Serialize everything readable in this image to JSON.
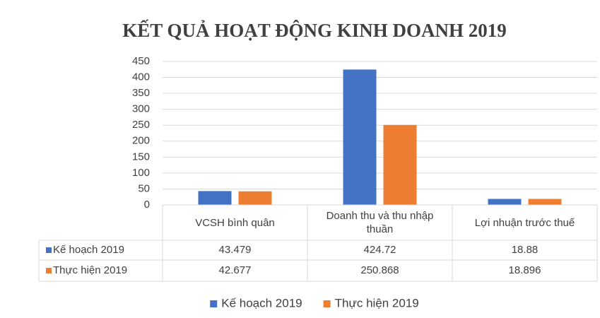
{
  "chart_data": {
    "type": "bar",
    "title": "KẾT QUẢ HOẠT ĐỘNG KINH DOANH 2019",
    "categories": [
      "VCSH bình quân",
      "Doanh thu và thu nhập thuần",
      "Lợi nhuận trước thuế"
    ],
    "series": [
      {
        "name": "Kế hoạch 2019",
        "color": "#4472c4",
        "values": [
          43.479,
          424.72,
          18.88
        ]
      },
      {
        "name": "Thực hiện 2019",
        "color": "#ed7d31",
        "values": [
          42.677,
          250.868,
          18.896
        ]
      }
    ],
    "ylim": [
      0,
      450
    ],
    "yticks": [
      0,
      50,
      100,
      150,
      200,
      250,
      300,
      350,
      400,
      450
    ],
    "grid": true,
    "data_table": true,
    "legend": "bottom"
  }
}
